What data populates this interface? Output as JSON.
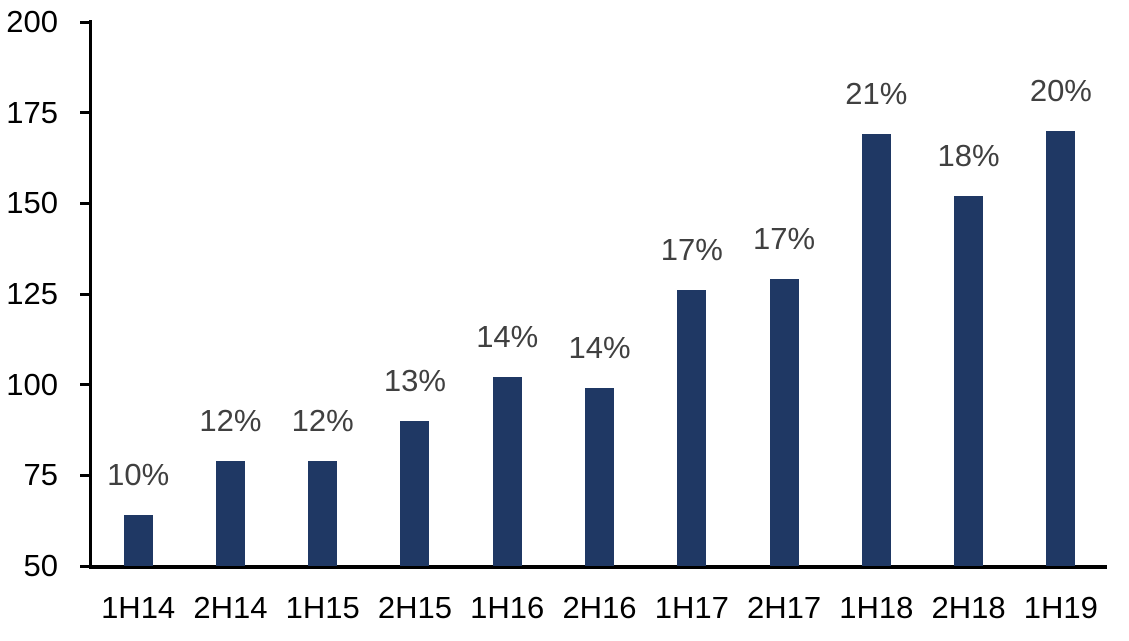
{
  "chart_data": {
    "type": "bar",
    "title": "",
    "xlabel": "",
    "ylabel": "",
    "categories": [
      "1H14",
      "2H14",
      "1H15",
      "2H15",
      "1H16",
      "2H16",
      "1H17",
      "2H17",
      "1H18",
      "2H18",
      "1H19"
    ],
    "values": [
      64,
      79,
      79,
      90,
      102,
      99,
      126,
      129,
      169,
      152,
      170
    ],
    "bar_labels": [
      "10%",
      "12%",
      "12%",
      "13%",
      "14%",
      "14%",
      "17%",
      "17%",
      "21%",
      "18%",
      "20%"
    ],
    "ylim": [
      50,
      200
    ],
    "yticks": [
      50,
      75,
      100,
      125,
      150,
      175,
      200
    ],
    "grid": false,
    "legend": false,
    "colors": {
      "bar": "#1F3864",
      "data_label": "#404040",
      "axis": "#000000",
      "tick_label": "#000000",
      "background": "#FFFFFF"
    }
  }
}
